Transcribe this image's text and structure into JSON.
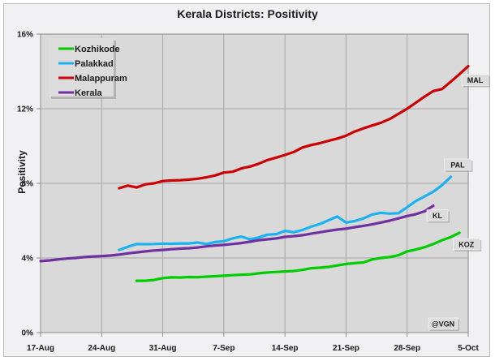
{
  "chart_data": {
    "type": "line",
    "title": "Kerala Districts: Positivity",
    "xlabel": "",
    "ylabel": "Positivity",
    "ylim": [
      0,
      16
    ],
    "yticks": [
      0,
      4,
      8,
      12,
      16
    ],
    "ytick_labels": [
      "0%",
      "4%",
      "8%",
      "12%",
      "16%"
    ],
    "x_day0": "17-Aug",
    "xlim_days": [
      0,
      49
    ],
    "xticks_days": [
      0,
      7,
      14,
      21,
      28,
      35,
      42,
      49
    ],
    "xtick_labels": [
      "17-Aug",
      "24-Aug",
      "31-Aug",
      "7-Sep",
      "14-Sep",
      "21-Sep",
      "28-Sep",
      "5-Oct"
    ],
    "grid": true,
    "legend_position": "top-left",
    "annotation": "@VGN",
    "series": [
      {
        "name": "Kozhikode",
        "short_label": "KOZ",
        "color": "#00cc00",
        "start_day": 11,
        "values": [
          2.78,
          2.78,
          2.82,
          2.92,
          2.96,
          2.95,
          2.98,
          2.97,
          3.0,
          3.02,
          3.05,
          3.08,
          3.1,
          3.12,
          3.18,
          3.22,
          3.25,
          3.28,
          3.3,
          3.36,
          3.45,
          3.48,
          3.52,
          3.6,
          3.68,
          3.72,
          3.76,
          3.92,
          4.0,
          4.05,
          4.15,
          4.35,
          4.45,
          4.58,
          4.75,
          4.95,
          5.12,
          5.35
        ]
      },
      {
        "name": "Palakkad",
        "short_label": "PAL",
        "color": "#1ab2f0",
        "start_day": 9,
        "values": [
          4.43,
          4.6,
          4.75,
          4.74,
          4.75,
          4.77,
          4.76,
          4.78,
          4.78,
          4.83,
          4.75,
          4.85,
          4.9,
          5.05,
          5.15,
          5.0,
          5.1,
          5.25,
          5.28,
          5.45,
          5.38,
          5.5,
          5.68,
          5.82,
          6.02,
          6.22,
          5.9,
          5.98,
          6.12,
          6.33,
          6.42,
          6.38,
          6.4,
          6.72,
          7.05,
          7.3,
          7.55,
          7.9,
          8.35
        ]
      },
      {
        "name": "Malappuram",
        "short_label": "MAL",
        "color": "#cc0000",
        "start_day": 9,
        "values": [
          7.74,
          7.88,
          7.78,
          7.95,
          8.0,
          8.12,
          8.15,
          8.17,
          8.2,
          8.25,
          8.32,
          8.42,
          8.58,
          8.62,
          8.8,
          8.9,
          9.05,
          9.25,
          9.38,
          9.52,
          9.68,
          9.92,
          10.05,
          10.15,
          10.28,
          10.4,
          10.55,
          10.78,
          10.95,
          11.1,
          11.25,
          11.45,
          11.72,
          12.0,
          12.32,
          12.65,
          12.95,
          13.05,
          13.45,
          13.85,
          14.28
        ]
      },
      {
        "name": "Kerala",
        "short_label": "KL",
        "color": "#7030a0",
        "start_day": 0,
        "values": [
          3.83,
          3.87,
          3.92,
          3.97,
          4.0,
          4.05,
          4.08,
          4.1,
          4.13,
          4.18,
          4.25,
          4.3,
          4.35,
          4.4,
          4.43,
          4.47,
          4.5,
          4.52,
          4.56,
          4.62,
          4.67,
          4.7,
          4.75,
          4.8,
          4.87,
          4.95,
          5.0,
          5.05,
          5.13,
          5.17,
          5.22,
          5.3,
          5.38,
          5.45,
          5.52,
          5.57,
          5.65,
          5.72,
          5.8,
          5.9,
          6.0,
          6.12,
          6.25,
          6.35,
          6.5,
          6.8
        ]
      }
    ]
  }
}
